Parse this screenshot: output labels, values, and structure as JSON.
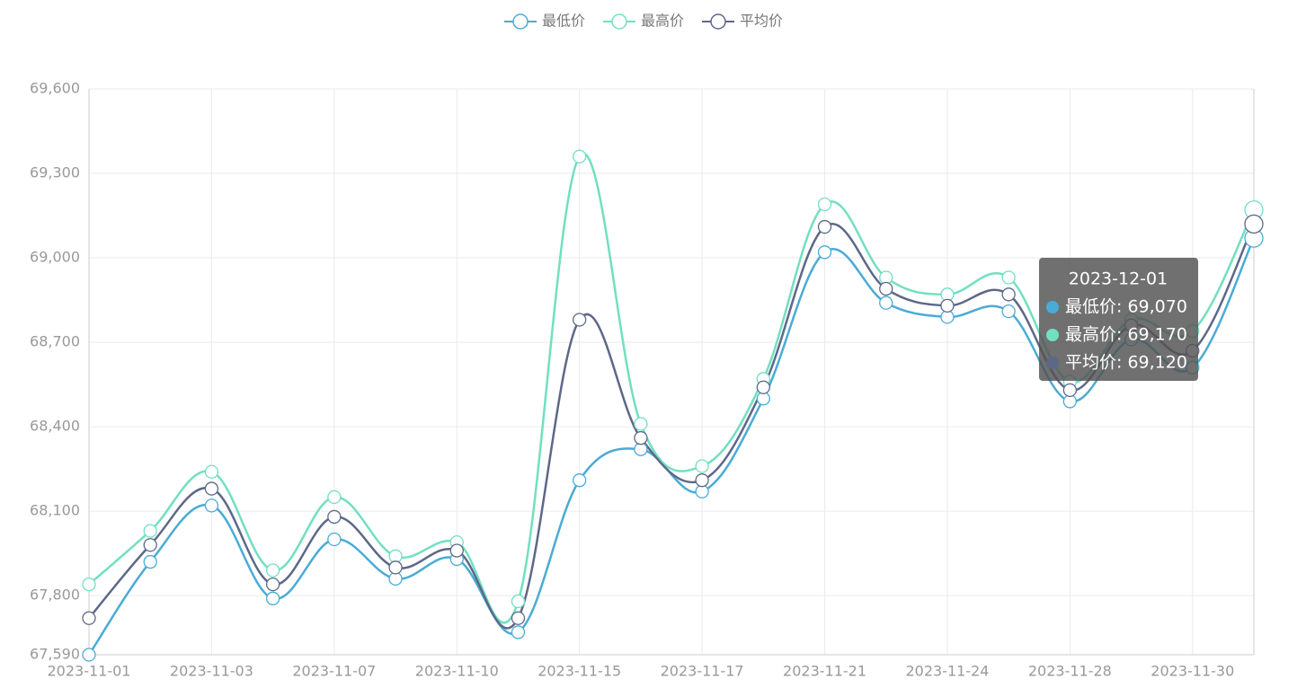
{
  "chart_data": {
    "type": "line",
    "categories": [
      "2023-11-01",
      null,
      "2023-11-03",
      null,
      "2023-11-07",
      null,
      "2023-11-10",
      null,
      "2023-11-15",
      null,
      "2023-11-17",
      null,
      "2023-11-21",
      null,
      "2023-11-24",
      null,
      "2023-11-28",
      null,
      "2023-11-30",
      null
    ],
    "series": [
      {
        "name": "最低价",
        "color": "#4aabd6",
        "values": [
          67590,
          67920,
          68120,
          67790,
          68000,
          67860,
          67930,
          67670,
          68210,
          68320,
          68170,
          68500,
          69020,
          68840,
          68790,
          68810,
          68490,
          68710,
          68610,
          69070
        ]
      },
      {
        "name": "最高价",
        "color": "#72dfc1",
        "values": [
          67840,
          68030,
          68240,
          67890,
          68150,
          67940,
          67990,
          67780,
          69360,
          68410,
          68260,
          68570,
          69190,
          68930,
          68870,
          68930,
          68560,
          68780,
          68740,
          69170
        ]
      },
      {
        "name": "平均价",
        "color": "#5d6888",
        "values": [
          67720,
          67980,
          68180,
          67840,
          68080,
          67900,
          67960,
          67720,
          68780,
          68360,
          68210,
          68540,
          69110,
          68890,
          68830,
          68870,
          68530,
          68760,
          68670,
          69120
        ]
      }
    ],
    "ylim": [
      67590,
      69600
    ],
    "yticks": [
      {
        "value": 67590,
        "label": "67,590"
      },
      {
        "value": 67800,
        "label": "67,800"
      },
      {
        "value": 68100,
        "label": "68,100"
      },
      {
        "value": 68400,
        "label": "68,400"
      },
      {
        "value": 68700,
        "label": "68,700"
      },
      {
        "value": 69000,
        "label": "69,000"
      },
      {
        "value": 69300,
        "label": "69,300"
      },
      {
        "value": 69600,
        "label": "69,600"
      }
    ],
    "grid": true,
    "legend": "top",
    "tooltip": {
      "title": "2023-12-01",
      "rows": [
        "最低价: 69,070",
        "最高价: 69,170",
        "平均价: 69,120"
      ]
    }
  }
}
